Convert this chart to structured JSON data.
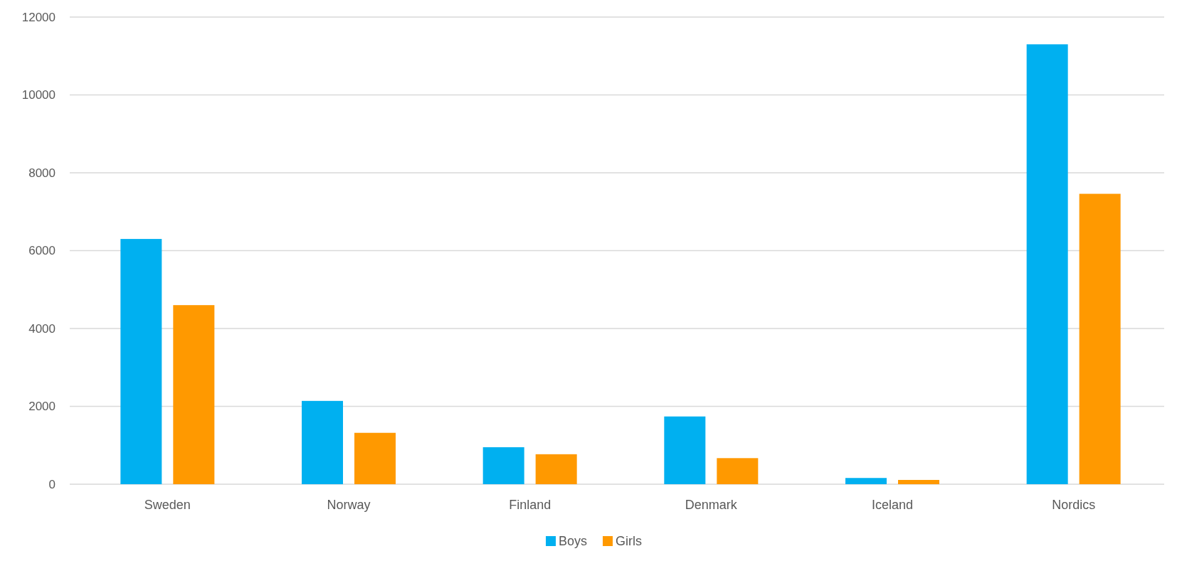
{
  "chart_data": {
    "type": "bar",
    "categories": [
      "Sweden",
      "Norway",
      "Finland",
      "Denmark",
      "Iceland",
      "Nordics"
    ],
    "series": [
      {
        "name": "Boys",
        "color": "#00b0f0",
        "values": [
          6300,
          2140,
          950,
          1740,
          160,
          11300
        ]
      },
      {
        "name": "Girls",
        "color": "#ff9900",
        "values": [
          4600,
          1320,
          770,
          670,
          110,
          7460
        ]
      }
    ],
    "ylim": [
      0,
      12000
    ],
    "yticks": [
      0,
      2000,
      4000,
      6000,
      8000,
      10000,
      12000
    ],
    "grid": "y",
    "legend": "bottom"
  }
}
